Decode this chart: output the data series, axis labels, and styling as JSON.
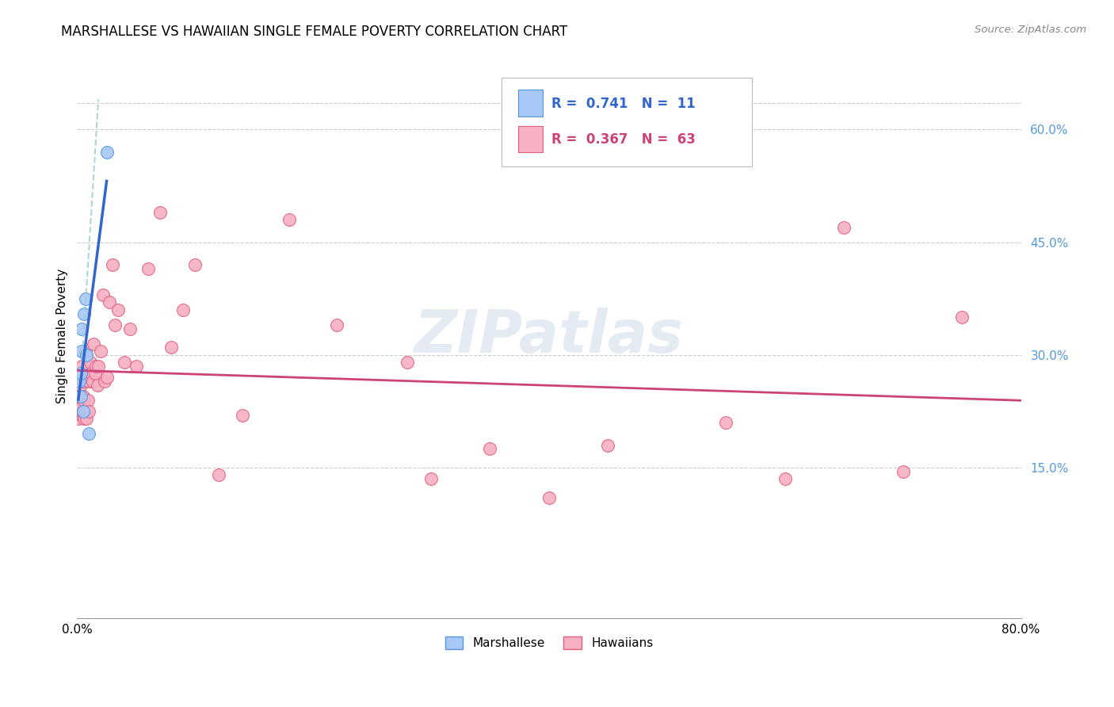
{
  "title": "MARSHALLESE VS HAWAIIAN SINGLE FEMALE POVERTY CORRELATION CHART",
  "source": "Source: ZipAtlas.com",
  "ylabel": "Single Female Poverty",
  "ytick_labels": [
    "15.0%",
    "30.0%",
    "45.0%",
    "60.0%"
  ],
  "ytick_values": [
    0.15,
    0.3,
    0.45,
    0.6
  ],
  "xlim": [
    0.0,
    0.8
  ],
  "ylim": [
    -0.05,
    0.7
  ],
  "marshallese_color": "#a8c8f8",
  "marshallese_edge": "#5595e0",
  "hawaiian_color": "#f8b0c4",
  "hawaiian_edge": "#e06080",
  "trendline_marshallese": "#3366cc",
  "trendline_hawaiian": "#cc4477",
  "trendline_ext_color": "#99cccc",
  "legend_r_marshallese": "0.741",
  "legend_n_marshallese": "11",
  "legend_r_hawaiian": "0.367",
  "legend_n_hawaiian": "63",
  "watermark": "ZIPatlas",
  "marshallese_x": [
    0.002,
    0.003,
    0.003,
    0.004,
    0.004,
    0.005,
    0.006,
    0.007,
    0.008,
    0.01,
    0.025
  ],
  "marshallese_y": [
    0.265,
    0.275,
    0.245,
    0.305,
    0.335,
    0.225,
    0.355,
    0.375,
    0.3,
    0.195,
    0.57
  ],
  "hawaiian_x": [
    0.001,
    0.001,
    0.002,
    0.002,
    0.002,
    0.003,
    0.003,
    0.003,
    0.004,
    0.004,
    0.004,
    0.005,
    0.005,
    0.005,
    0.005,
    0.006,
    0.006,
    0.006,
    0.007,
    0.007,
    0.008,
    0.008,
    0.009,
    0.01,
    0.01,
    0.011,
    0.012,
    0.013,
    0.014,
    0.015,
    0.016,
    0.017,
    0.018,
    0.02,
    0.022,
    0.023,
    0.025,
    0.027,
    0.03,
    0.032,
    0.035,
    0.04,
    0.045,
    0.05,
    0.06,
    0.07,
    0.08,
    0.09,
    0.1,
    0.12,
    0.14,
    0.18,
    0.22,
    0.28,
    0.3,
    0.35,
    0.4,
    0.45,
    0.55,
    0.6,
    0.65,
    0.7,
    0.75
  ],
  "hawaiian_y": [
    0.215,
    0.225,
    0.23,
    0.235,
    0.245,
    0.225,
    0.23,
    0.26,
    0.22,
    0.23,
    0.285,
    0.22,
    0.225,
    0.245,
    0.265,
    0.215,
    0.24,
    0.265,
    0.225,
    0.305,
    0.215,
    0.27,
    0.24,
    0.225,
    0.265,
    0.29,
    0.275,
    0.265,
    0.315,
    0.275,
    0.285,
    0.26,
    0.285,
    0.305,
    0.38,
    0.265,
    0.27,
    0.37,
    0.42,
    0.34,
    0.36,
    0.29,
    0.335,
    0.285,
    0.415,
    0.49,
    0.31,
    0.36,
    0.42,
    0.14,
    0.22,
    0.48,
    0.34,
    0.29,
    0.135,
    0.175,
    0.11,
    0.18,
    0.21,
    0.135,
    0.47,
    0.145,
    0.35
  ]
}
